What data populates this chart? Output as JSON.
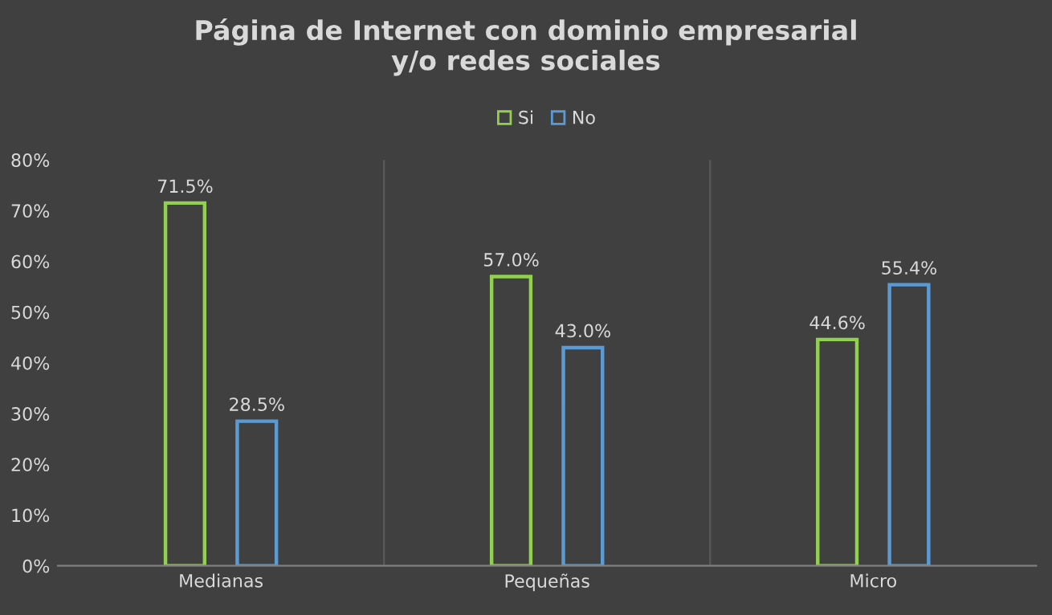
{
  "chart_data": {
    "type": "bar",
    "title": "Página de Internet con dominio empresarial\ny/o redes sociales",
    "categories": [
      "Medianas",
      "Pequeñas",
      "Micro"
    ],
    "series": [
      {
        "name": "Si",
        "color": "#92d050",
        "values": [
          71.5,
          57.0,
          44.6
        ],
        "value_labels": [
          "71.5%",
          "57.0%",
          "44.6%"
        ]
      },
      {
        "name": "No",
        "color": "#5b9bd5",
        "values": [
          28.5,
          43.0,
          55.4
        ],
        "value_labels": [
          "28.5%",
          "43.0%",
          "55.4%"
        ]
      }
    ],
    "ylim": [
      0,
      80
    ],
    "yticks": [
      {
        "value": 0,
        "label": "0%"
      },
      {
        "value": 10,
        "label": "10%"
      },
      {
        "value": 20,
        "label": "20%"
      },
      {
        "value": 30,
        "label": "30%"
      },
      {
        "value": 40,
        "label": "40%"
      },
      {
        "value": 50,
        "label": "50%"
      },
      {
        "value": 60,
        "label": "60%"
      },
      {
        "value": 70,
        "label": "70%"
      },
      {
        "value": 80,
        "label": "80%"
      }
    ],
    "grid": "x",
    "legend": "top"
  }
}
